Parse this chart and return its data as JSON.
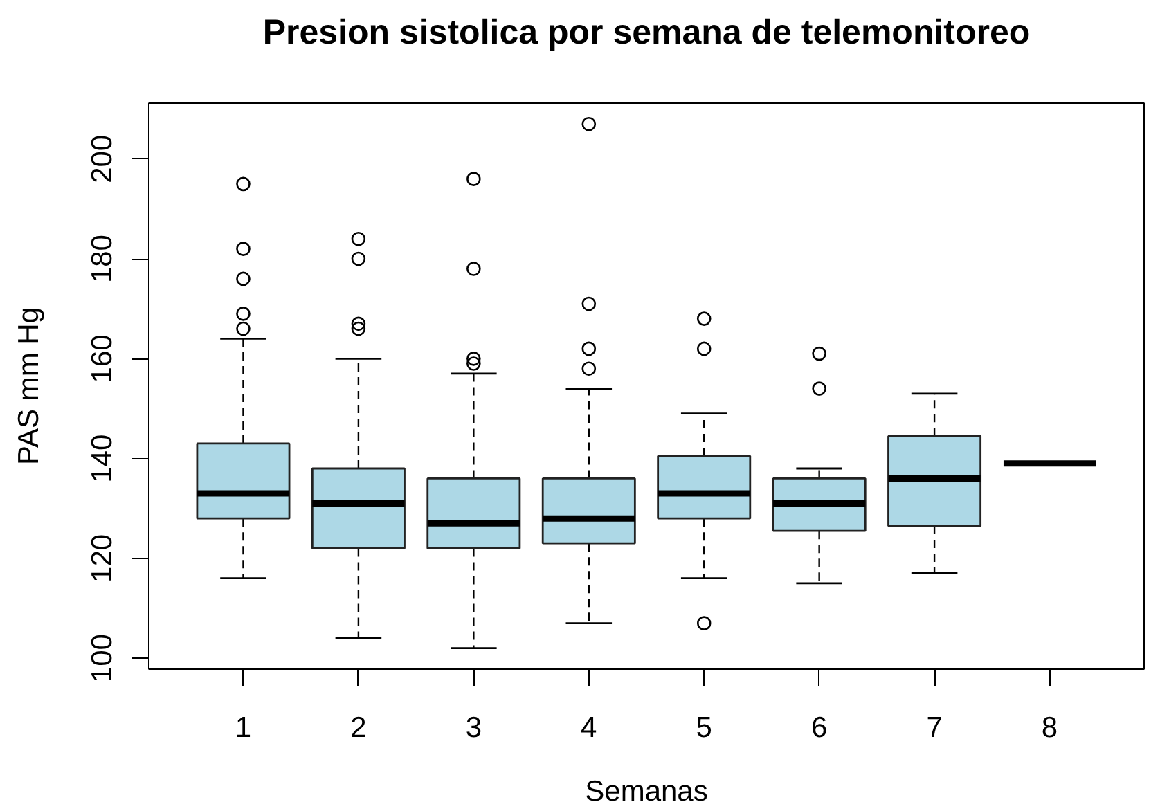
{
  "chart_data": {
    "type": "box",
    "title": "Presion sistolica por semana de telemonitoreo",
    "xlabel": "Semanas",
    "ylabel": "PAS mm Hg",
    "categories": [
      "1",
      "2",
      "3",
      "4",
      "5",
      "6",
      "7",
      "8"
    ],
    "ylim": [
      97.8,
      211.2
    ],
    "yticks": [
      100,
      120,
      140,
      160,
      180,
      200
    ],
    "grid": false,
    "marker": "circle",
    "line_style": "dashed",
    "series": [
      {
        "colors": [
          "#add8e6",
          "#add8e6",
          "#add8e6",
          "#add8e6",
          "#add8e6",
          "#add8e6",
          "#add8e6",
          "#000000"
        ],
        "boxes": [
          {
            "low": 116,
            "q1": 128,
            "median": 133,
            "q3": 143,
            "high": 164,
            "outliers": [
              166,
              169,
              176,
              182,
              195
            ]
          },
          {
            "low": 104,
            "q1": 122,
            "median": 131,
            "q3": 138,
            "high": 160,
            "outliers": [
              166,
              167,
              180,
              184
            ]
          },
          {
            "low": 102,
            "q1": 122,
            "median": 127,
            "q3": 136,
            "high": 157,
            "outliers": [
              159,
              160,
              178,
              196
            ]
          },
          {
            "low": 107,
            "q1": 123,
            "median": 128,
            "q3": 136,
            "high": 154,
            "outliers": [
              158,
              162,
              171,
              207
            ]
          },
          {
            "low": 116,
            "q1": 128,
            "median": 133,
            "q3": 140.5,
            "high": 149,
            "outliers": [
              107,
              162,
              168
            ]
          },
          {
            "low": 115,
            "q1": 125.5,
            "median": 131,
            "q3": 136,
            "high": 138,
            "outliers": [
              154,
              161
            ]
          },
          {
            "low": 117,
            "q1": 126.5,
            "median": 136,
            "q3": 144.5,
            "high": 153
          },
          {
            "low": 139,
            "q1": 139,
            "median": 139,
            "q3": 139,
            "high": 139
          }
        ]
      }
    ]
  }
}
